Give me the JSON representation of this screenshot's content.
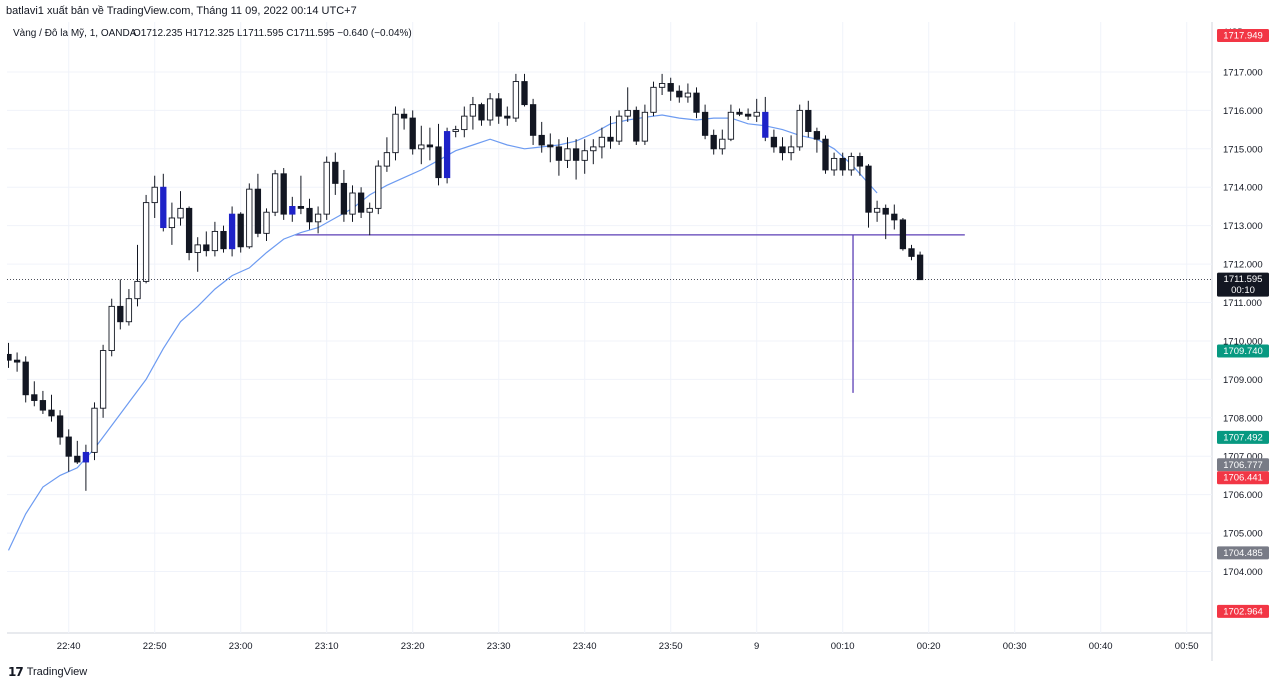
{
  "header": {
    "publisher_line": "batlavi1 xuất bản về TradingView.com, Tháng 11 09, 2022 00:14 UTC+7"
  },
  "chart_data": {
    "type": "candlestick",
    "symbol_line": "Vàng / Đô la Mỹ, 1, OANDA",
    "ohlc": {
      "open_label": "O",
      "open": "1712.235",
      "high_label": "H",
      "high": "1712.325",
      "low_label": "L",
      "low": "1711.595",
      "close_label": "C",
      "close": "1711.595",
      "change": "−0.640 (−0.04%)"
    },
    "currency": "USD",
    "ylim": [
      1702.4,
      1718.3
    ],
    "x_time_range": [
      "22:33",
      "00:50"
    ],
    "y_ticks": [
      "1717.000",
      "1716.000",
      "1715.000",
      "1714.000",
      "1713.000",
      "1712.000",
      "1711.000",
      "1710.000",
      "1709.000",
      "1708.000",
      "1707.000",
      "1706.000",
      "1705.000",
      "1704.000"
    ],
    "x_ticks": [
      {
        "label": "22:40",
        "t": 7
      },
      {
        "label": "22:50",
        "t": 17
      },
      {
        "label": "23:00",
        "t": 27
      },
      {
        "label": "23:10",
        "t": 37
      },
      {
        "label": "23:20",
        "t": 47
      },
      {
        "label": "23:30",
        "t": 57
      },
      {
        "label": "23:40",
        "t": 67
      },
      {
        "label": "23:50",
        "t": 77
      },
      {
        "label": "9",
        "t": 87
      },
      {
        "label": "00:10",
        "t": 97
      },
      {
        "label": "00:20",
        "t": 107
      },
      {
        "label": "00:30",
        "t": 117
      },
      {
        "label": "00:40",
        "t": 127
      },
      {
        "label": "00:50",
        "t": 137
      }
    ],
    "price_labels": [
      {
        "value": 1717.949,
        "text": "1717.949",
        "color": "#f23645"
      },
      {
        "value": 1711.595,
        "text": "1711.595",
        "sub": "00:10",
        "color": "#131722"
      },
      {
        "value": 1709.74,
        "text": "1709.740",
        "color": "#089981"
      },
      {
        "value": 1707.492,
        "text": "1707.492",
        "color": "#089981"
      },
      {
        "value": 1706.777,
        "text": "1706.777",
        "color": "#787b86"
      },
      {
        "value": 1706.441,
        "text": "1706.441",
        "color": "#f23645"
      },
      {
        "value": 1704.485,
        "text": "1704.485",
        "color": "#787b86"
      },
      {
        "value": 1702.964,
        "text": "1702.964",
        "color": "#f23645"
      }
    ],
    "last_price": 1711.595,
    "drawings": {
      "horizontal_line": {
        "value": 1712.76,
        "t_start": 33.3,
        "t_end": 111.2,
        "color": "#5b3fb5"
      },
      "vertical_line": {
        "t": 98.2,
        "from": 1712.76,
        "to": 1708.65,
        "color": "#5b3fb5"
      }
    },
    "ma_line": {
      "color": "#6d9bf1",
      "points": [
        [
          0,
          1704.55
        ],
        [
          2,
          1705.5
        ],
        [
          4,
          1706.2
        ],
        [
          6,
          1706.5
        ],
        [
          8,
          1706.7
        ],
        [
          10,
          1707.2
        ],
        [
          12,
          1707.8
        ],
        [
          14,
          1708.4
        ],
        [
          16,
          1709.0
        ],
        [
          18,
          1709.8
        ],
        [
          20,
          1710.5
        ],
        [
          22,
          1710.9
        ],
        [
          24,
          1711.35
        ],
        [
          26,
          1711.7
        ],
        [
          28,
          1711.9
        ],
        [
          30,
          1712.3
        ],
        [
          32,
          1712.65
        ],
        [
          34,
          1712.82
        ],
        [
          36,
          1712.95
        ],
        [
          38,
          1713.2
        ],
        [
          40,
          1713.45
        ],
        [
          42,
          1713.8
        ],
        [
          44,
          1714.05
        ],
        [
          46,
          1714.25
        ],
        [
          48,
          1714.45
        ],
        [
          50,
          1714.7
        ],
        [
          52,
          1714.95
        ],
        [
          54,
          1715.1
        ],
        [
          56,
          1715.25
        ],
        [
          58,
          1715.1
        ],
        [
          60,
          1715.0
        ],
        [
          62,
          1715.05
        ],
        [
          64,
          1715.1
        ],
        [
          66,
          1715.2
        ],
        [
          68,
          1715.4
        ],
        [
          70,
          1715.65
        ],
        [
          72,
          1715.75
        ],
        [
          74,
          1715.82
        ],
        [
          76,
          1715.88
        ],
        [
          78,
          1715.8
        ],
        [
          80,
          1715.75
        ],
        [
          82,
          1715.8
        ],
        [
          84,
          1715.8
        ],
        [
          86,
          1715.65
        ],
        [
          88,
          1715.6
        ],
        [
          90,
          1715.5
        ],
        [
          92,
          1715.35
        ],
        [
          94,
          1715.25
        ],
        [
          96,
          1715.0
        ],
        [
          98,
          1714.6
        ],
        [
          100,
          1714.1
        ],
        [
          101,
          1713.85
        ]
      ]
    },
    "candles": [
      {
        "o": 1709.65,
        "h": 1709.95,
        "l": 1709.3,
        "c": 1709.5
      },
      {
        "o": 1709.5,
        "h": 1709.7,
        "l": 1709.2,
        "c": 1709.45
      },
      {
        "o": 1709.45,
        "h": 1709.6,
        "l": 1708.4,
        "c": 1708.6
      },
      {
        "o": 1708.6,
        "h": 1708.95,
        "l": 1708.3,
        "c": 1708.45
      },
      {
        "o": 1708.45,
        "h": 1708.7,
        "l": 1708.1,
        "c": 1708.2
      },
      {
        "o": 1708.2,
        "h": 1708.6,
        "l": 1707.9,
        "c": 1708.05
      },
      {
        "o": 1708.05,
        "h": 1708.2,
        "l": 1707.3,
        "c": 1707.5
      },
      {
        "o": 1707.5,
        "h": 1707.7,
        "l": 1706.6,
        "c": 1707.0
      },
      {
        "o": 1707.0,
        "h": 1707.4,
        "l": 1706.8,
        "c": 1706.85
      },
      {
        "o": 1706.85,
        "h": 1707.3,
        "l": 1706.1,
        "c": 1707.1,
        "color": "#1e22c8"
      },
      {
        "o": 1707.1,
        "h": 1708.4,
        "l": 1706.9,
        "c": 1708.25
      },
      {
        "o": 1708.25,
        "h": 1709.9,
        "l": 1708.0,
        "c": 1709.75
      },
      {
        "o": 1709.75,
        "h": 1711.1,
        "l": 1709.6,
        "c": 1710.9
      },
      {
        "o": 1710.9,
        "h": 1711.6,
        "l": 1710.3,
        "c": 1710.5
      },
      {
        "o": 1710.5,
        "h": 1711.35,
        "l": 1710.4,
        "c": 1711.1
      },
      {
        "o": 1711.1,
        "h": 1712.5,
        "l": 1710.9,
        "c": 1711.55
      },
      {
        "o": 1711.55,
        "h": 1713.8,
        "l": 1711.5,
        "c": 1713.6
      },
      {
        "o": 1713.6,
        "h": 1714.3,
        "l": 1713.2,
        "c": 1714.0
      },
      {
        "o": 1714.0,
        "h": 1714.35,
        "l": 1712.85,
        "c": 1712.95,
        "color": "#1e22c8"
      },
      {
        "o": 1712.95,
        "h": 1713.6,
        "l": 1712.5,
        "c": 1713.2
      },
      {
        "o": 1713.2,
        "h": 1713.9,
        "l": 1713.0,
        "c": 1713.45
      },
      {
        "o": 1713.45,
        "h": 1713.5,
        "l": 1712.1,
        "c": 1712.3
      },
      {
        "o": 1712.3,
        "h": 1712.7,
        "l": 1711.8,
        "c": 1712.5
      },
      {
        "o": 1712.5,
        "h": 1712.85,
        "l": 1712.2,
        "c": 1712.35
      },
      {
        "o": 1712.35,
        "h": 1713.1,
        "l": 1712.2,
        "c": 1712.85
      },
      {
        "o": 1712.85,
        "h": 1713.0,
        "l": 1712.3,
        "c": 1712.4
      },
      {
        "o": 1712.4,
        "h": 1713.5,
        "l": 1712.2,
        "c": 1713.3,
        "color": "#1e22c8"
      },
      {
        "o": 1713.3,
        "h": 1713.35,
        "l": 1712.3,
        "c": 1712.45
      },
      {
        "o": 1712.45,
        "h": 1714.1,
        "l": 1712.4,
        "c": 1713.95
      },
      {
        "o": 1713.95,
        "h": 1714.35,
        "l": 1712.7,
        "c": 1712.8
      },
      {
        "o": 1712.8,
        "h": 1713.45,
        "l": 1712.6,
        "c": 1713.35
      },
      {
        "o": 1713.35,
        "h": 1714.45,
        "l": 1713.25,
        "c": 1714.35
      },
      {
        "o": 1714.35,
        "h": 1714.5,
        "l": 1713.15,
        "c": 1713.3
      },
      {
        "o": 1713.3,
        "h": 1713.75,
        "l": 1713.1,
        "c": 1713.5,
        "color": "#1e22c8"
      },
      {
        "o": 1713.5,
        "h": 1714.3,
        "l": 1713.3,
        "c": 1713.45
      },
      {
        "o": 1713.45,
        "h": 1713.7,
        "l": 1712.9,
        "c": 1713.1
      },
      {
        "o": 1713.1,
        "h": 1713.5,
        "l": 1712.8,
        "c": 1713.3
      },
      {
        "o": 1713.3,
        "h": 1714.8,
        "l": 1713.15,
        "c": 1714.65
      },
      {
        "o": 1714.65,
        "h": 1714.9,
        "l": 1713.8,
        "c": 1714.1
      },
      {
        "o": 1714.1,
        "h": 1714.45,
        "l": 1713.1,
        "c": 1713.3
      },
      {
        "o": 1713.3,
        "h": 1714.05,
        "l": 1713.1,
        "c": 1713.85
      },
      {
        "o": 1713.85,
        "h": 1714.0,
        "l": 1713.2,
        "c": 1713.35
      },
      {
        "o": 1713.35,
        "h": 1713.6,
        "l": 1712.75,
        "c": 1713.45
      },
      {
        "o": 1713.45,
        "h": 1714.7,
        "l": 1713.3,
        "c": 1714.55
      },
      {
        "o": 1714.55,
        "h": 1715.3,
        "l": 1714.4,
        "c": 1714.9
      },
      {
        "o": 1714.9,
        "h": 1716.1,
        "l": 1714.7,
        "c": 1715.9
      },
      {
        "o": 1715.9,
        "h": 1716.05,
        "l": 1715.5,
        "c": 1715.8
      },
      {
        "o": 1715.8,
        "h": 1716.0,
        "l": 1714.85,
        "c": 1715.0
      },
      {
        "o": 1715.0,
        "h": 1715.6,
        "l": 1714.6,
        "c": 1715.1
      },
      {
        "o": 1715.1,
        "h": 1715.55,
        "l": 1714.7,
        "c": 1715.05
      },
      {
        "o": 1715.05,
        "h": 1715.65,
        "l": 1714.05,
        "c": 1714.25
      },
      {
        "o": 1714.25,
        "h": 1715.55,
        "l": 1714.1,
        "c": 1715.45,
        "color": "#1e22c8"
      },
      {
        "o": 1715.45,
        "h": 1715.6,
        "l": 1715.3,
        "c": 1715.5
      },
      {
        "o": 1715.5,
        "h": 1716.1,
        "l": 1715.3,
        "c": 1715.85
      },
      {
        "o": 1715.85,
        "h": 1716.35,
        "l": 1715.5,
        "c": 1716.15
      },
      {
        "o": 1716.15,
        "h": 1716.2,
        "l": 1715.6,
        "c": 1715.75
      },
      {
        "o": 1715.75,
        "h": 1716.45,
        "l": 1715.6,
        "c": 1716.3
      },
      {
        "o": 1716.3,
        "h": 1716.45,
        "l": 1715.65,
        "c": 1715.85
      },
      {
        "o": 1715.85,
        "h": 1716.1,
        "l": 1715.6,
        "c": 1715.8
      },
      {
        "o": 1715.8,
        "h": 1716.95,
        "l": 1715.7,
        "c": 1716.75
      },
      {
        "o": 1716.75,
        "h": 1716.95,
        "l": 1716.1,
        "c": 1716.15
      },
      {
        "o": 1716.15,
        "h": 1716.3,
        "l": 1715.1,
        "c": 1715.35
      },
      {
        "o": 1715.35,
        "h": 1715.7,
        "l": 1714.9,
        "c": 1715.1
      },
      {
        "o": 1715.1,
        "h": 1715.4,
        "l": 1714.65,
        "c": 1715.05
      },
      {
        "o": 1715.05,
        "h": 1715.25,
        "l": 1714.3,
        "c": 1714.7
      },
      {
        "o": 1714.7,
        "h": 1715.3,
        "l": 1714.5,
        "c": 1715.0
      },
      {
        "o": 1715.0,
        "h": 1715.25,
        "l": 1714.2,
        "c": 1714.7
      },
      {
        "o": 1714.7,
        "h": 1715.25,
        "l": 1714.35,
        "c": 1714.95
      },
      {
        "o": 1714.95,
        "h": 1715.25,
        "l": 1714.6,
        "c": 1715.05
      },
      {
        "o": 1715.05,
        "h": 1715.55,
        "l": 1714.75,
        "c": 1715.3
      },
      {
        "o": 1715.3,
        "h": 1715.85,
        "l": 1715.0,
        "c": 1715.2
      },
      {
        "o": 1715.2,
        "h": 1716.0,
        "l": 1715.1,
        "c": 1715.85
      },
      {
        "o": 1715.85,
        "h": 1716.6,
        "l": 1715.7,
        "c": 1716.0
      },
      {
        "o": 1716.0,
        "h": 1716.1,
        "l": 1715.1,
        "c": 1715.2
      },
      {
        "o": 1715.2,
        "h": 1716.15,
        "l": 1715.1,
        "c": 1715.95
      },
      {
        "o": 1715.95,
        "h": 1716.75,
        "l": 1715.85,
        "c": 1716.6
      },
      {
        "o": 1716.6,
        "h": 1716.95,
        "l": 1716.4,
        "c": 1716.7
      },
      {
        "o": 1716.7,
        "h": 1716.85,
        "l": 1716.25,
        "c": 1716.5
      },
      {
        "o": 1716.5,
        "h": 1716.65,
        "l": 1716.2,
        "c": 1716.35
      },
      {
        "o": 1716.35,
        "h": 1716.7,
        "l": 1716.2,
        "c": 1716.45
      },
      {
        "o": 1716.45,
        "h": 1716.6,
        "l": 1715.8,
        "c": 1715.95
      },
      {
        "o": 1715.95,
        "h": 1716.15,
        "l": 1715.25,
        "c": 1715.35
      },
      {
        "o": 1715.35,
        "h": 1715.5,
        "l": 1714.85,
        "c": 1715.0
      },
      {
        "o": 1715.0,
        "h": 1715.5,
        "l": 1714.85,
        "c": 1715.25
      },
      {
        "o": 1715.25,
        "h": 1716.15,
        "l": 1715.2,
        "c": 1715.95
      },
      {
        "o": 1715.95,
        "h": 1716.05,
        "l": 1715.85,
        "c": 1715.9
      },
      {
        "o": 1715.9,
        "h": 1716.05,
        "l": 1715.75,
        "c": 1715.85
      },
      {
        "o": 1715.85,
        "h": 1716.3,
        "l": 1715.7,
        "c": 1715.95
      },
      {
        "o": 1715.95,
        "h": 1716.35,
        "l": 1715.2,
        "c": 1715.3,
        "color": "#1e22c8"
      },
      {
        "o": 1715.3,
        "h": 1715.5,
        "l": 1714.9,
        "c": 1715.05
      },
      {
        "o": 1715.05,
        "h": 1715.3,
        "l": 1714.7,
        "c": 1714.9
      },
      {
        "o": 1714.9,
        "h": 1715.35,
        "l": 1714.7,
        "c": 1715.05
      },
      {
        "o": 1715.05,
        "h": 1716.15,
        "l": 1714.95,
        "c": 1716.0
      },
      {
        "o": 1716.0,
        "h": 1716.25,
        "l": 1715.3,
        "c": 1715.45
      },
      {
        "o": 1715.45,
        "h": 1715.55,
        "l": 1714.9,
        "c": 1715.25
      },
      {
        "o": 1715.25,
        "h": 1715.35,
        "l": 1714.35,
        "c": 1714.45
      },
      {
        "o": 1714.45,
        "h": 1714.9,
        "l": 1714.3,
        "c": 1714.75
      },
      {
        "o": 1714.75,
        "h": 1714.9,
        "l": 1714.3,
        "c": 1714.45
      },
      {
        "o": 1714.45,
        "h": 1714.9,
        "l": 1714.3,
        "c": 1714.8
      },
      {
        "o": 1714.8,
        "h": 1714.9,
        "l": 1714.3,
        "c": 1714.55
      },
      {
        "o": 1714.55,
        "h": 1714.6,
        "l": 1712.95,
        "c": 1713.35
      },
      {
        "o": 1713.35,
        "h": 1713.65,
        "l": 1713.1,
        "c": 1713.45
      },
      {
        "o": 1713.45,
        "h": 1713.55,
        "l": 1712.65,
        "c": 1713.3
      },
      {
        "o": 1713.3,
        "h": 1713.55,
        "l": 1712.9,
        "c": 1713.15
      },
      {
        "o": 1713.15,
        "h": 1713.2,
        "l": 1712.35,
        "c": 1712.4
      },
      {
        "o": 1712.4,
        "h": 1712.5,
        "l": 1712.1,
        "c": 1712.2
      },
      {
        "o": 1712.235,
        "h": 1712.325,
        "l": 1711.595,
        "c": 1711.595
      }
    ]
  },
  "footer": {
    "logo_mark": "17",
    "brand": "TradingView"
  }
}
